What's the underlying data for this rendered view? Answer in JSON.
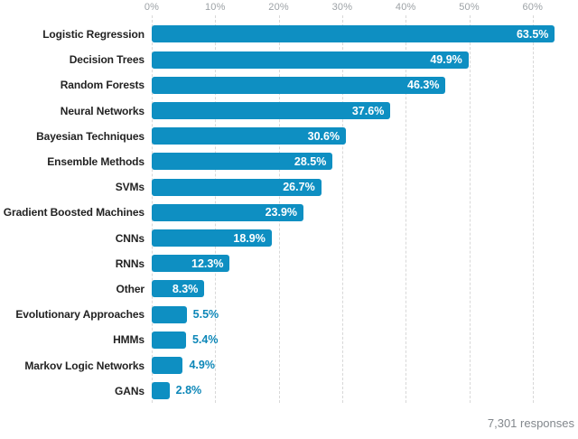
{
  "chart_data": {
    "type": "bar",
    "orientation": "horizontal",
    "title": "",
    "xlabel": "",
    "ylabel": "",
    "xlim": [
      0,
      64
    ],
    "grid": "dashed-vertical",
    "legend": "none",
    "x_ticks": [
      {
        "value": 0,
        "label": "0%"
      },
      {
        "value": 10,
        "label": "10%"
      },
      {
        "value": 20,
        "label": "20%"
      },
      {
        "value": 30,
        "label": "30%"
      },
      {
        "value": 40,
        "label": "40%"
      },
      {
        "value": 50,
        "label": "50%"
      },
      {
        "value": 60,
        "label": "60%"
      }
    ],
    "categories": [
      "Logistic Regression",
      "Decision Trees",
      "Random Forests",
      "Neural Networks",
      "Bayesian Techniques",
      "Ensemble Methods",
      "SVMs",
      "Gradient Boosted Machines",
      "CNNs",
      "RNNs",
      "Other",
      "Evolutionary Approaches",
      "HMMs",
      "Markov Logic Networks",
      "GANs"
    ],
    "values": [
      63.5,
      49.9,
      46.3,
      37.6,
      30.6,
      28.5,
      26.7,
      23.9,
      18.9,
      12.3,
      8.3,
      5.5,
      5.4,
      4.9,
      2.8
    ],
    "value_labels": [
      "63.5%",
      "49.9%",
      "46.3%",
      "37.6%",
      "30.6%",
      "28.5%",
      "26.7%",
      "23.9%",
      "18.9%",
      "12.3%",
      "8.3%",
      "5.5%",
      "5.4%",
      "4.9%",
      "2.8%"
    ],
    "inside_label_min_value": 8,
    "footnote": "7,301 responses",
    "colors": {
      "bar": "#0e8fc2",
      "value_inside": "#ffffff",
      "value_outside": "#0d87b8",
      "category_label": "#222222",
      "axis_tick_label": "#9da2a6",
      "gridline": "#d8d8d8",
      "footnote": "#82878c",
      "background": "#ffffff"
    }
  }
}
